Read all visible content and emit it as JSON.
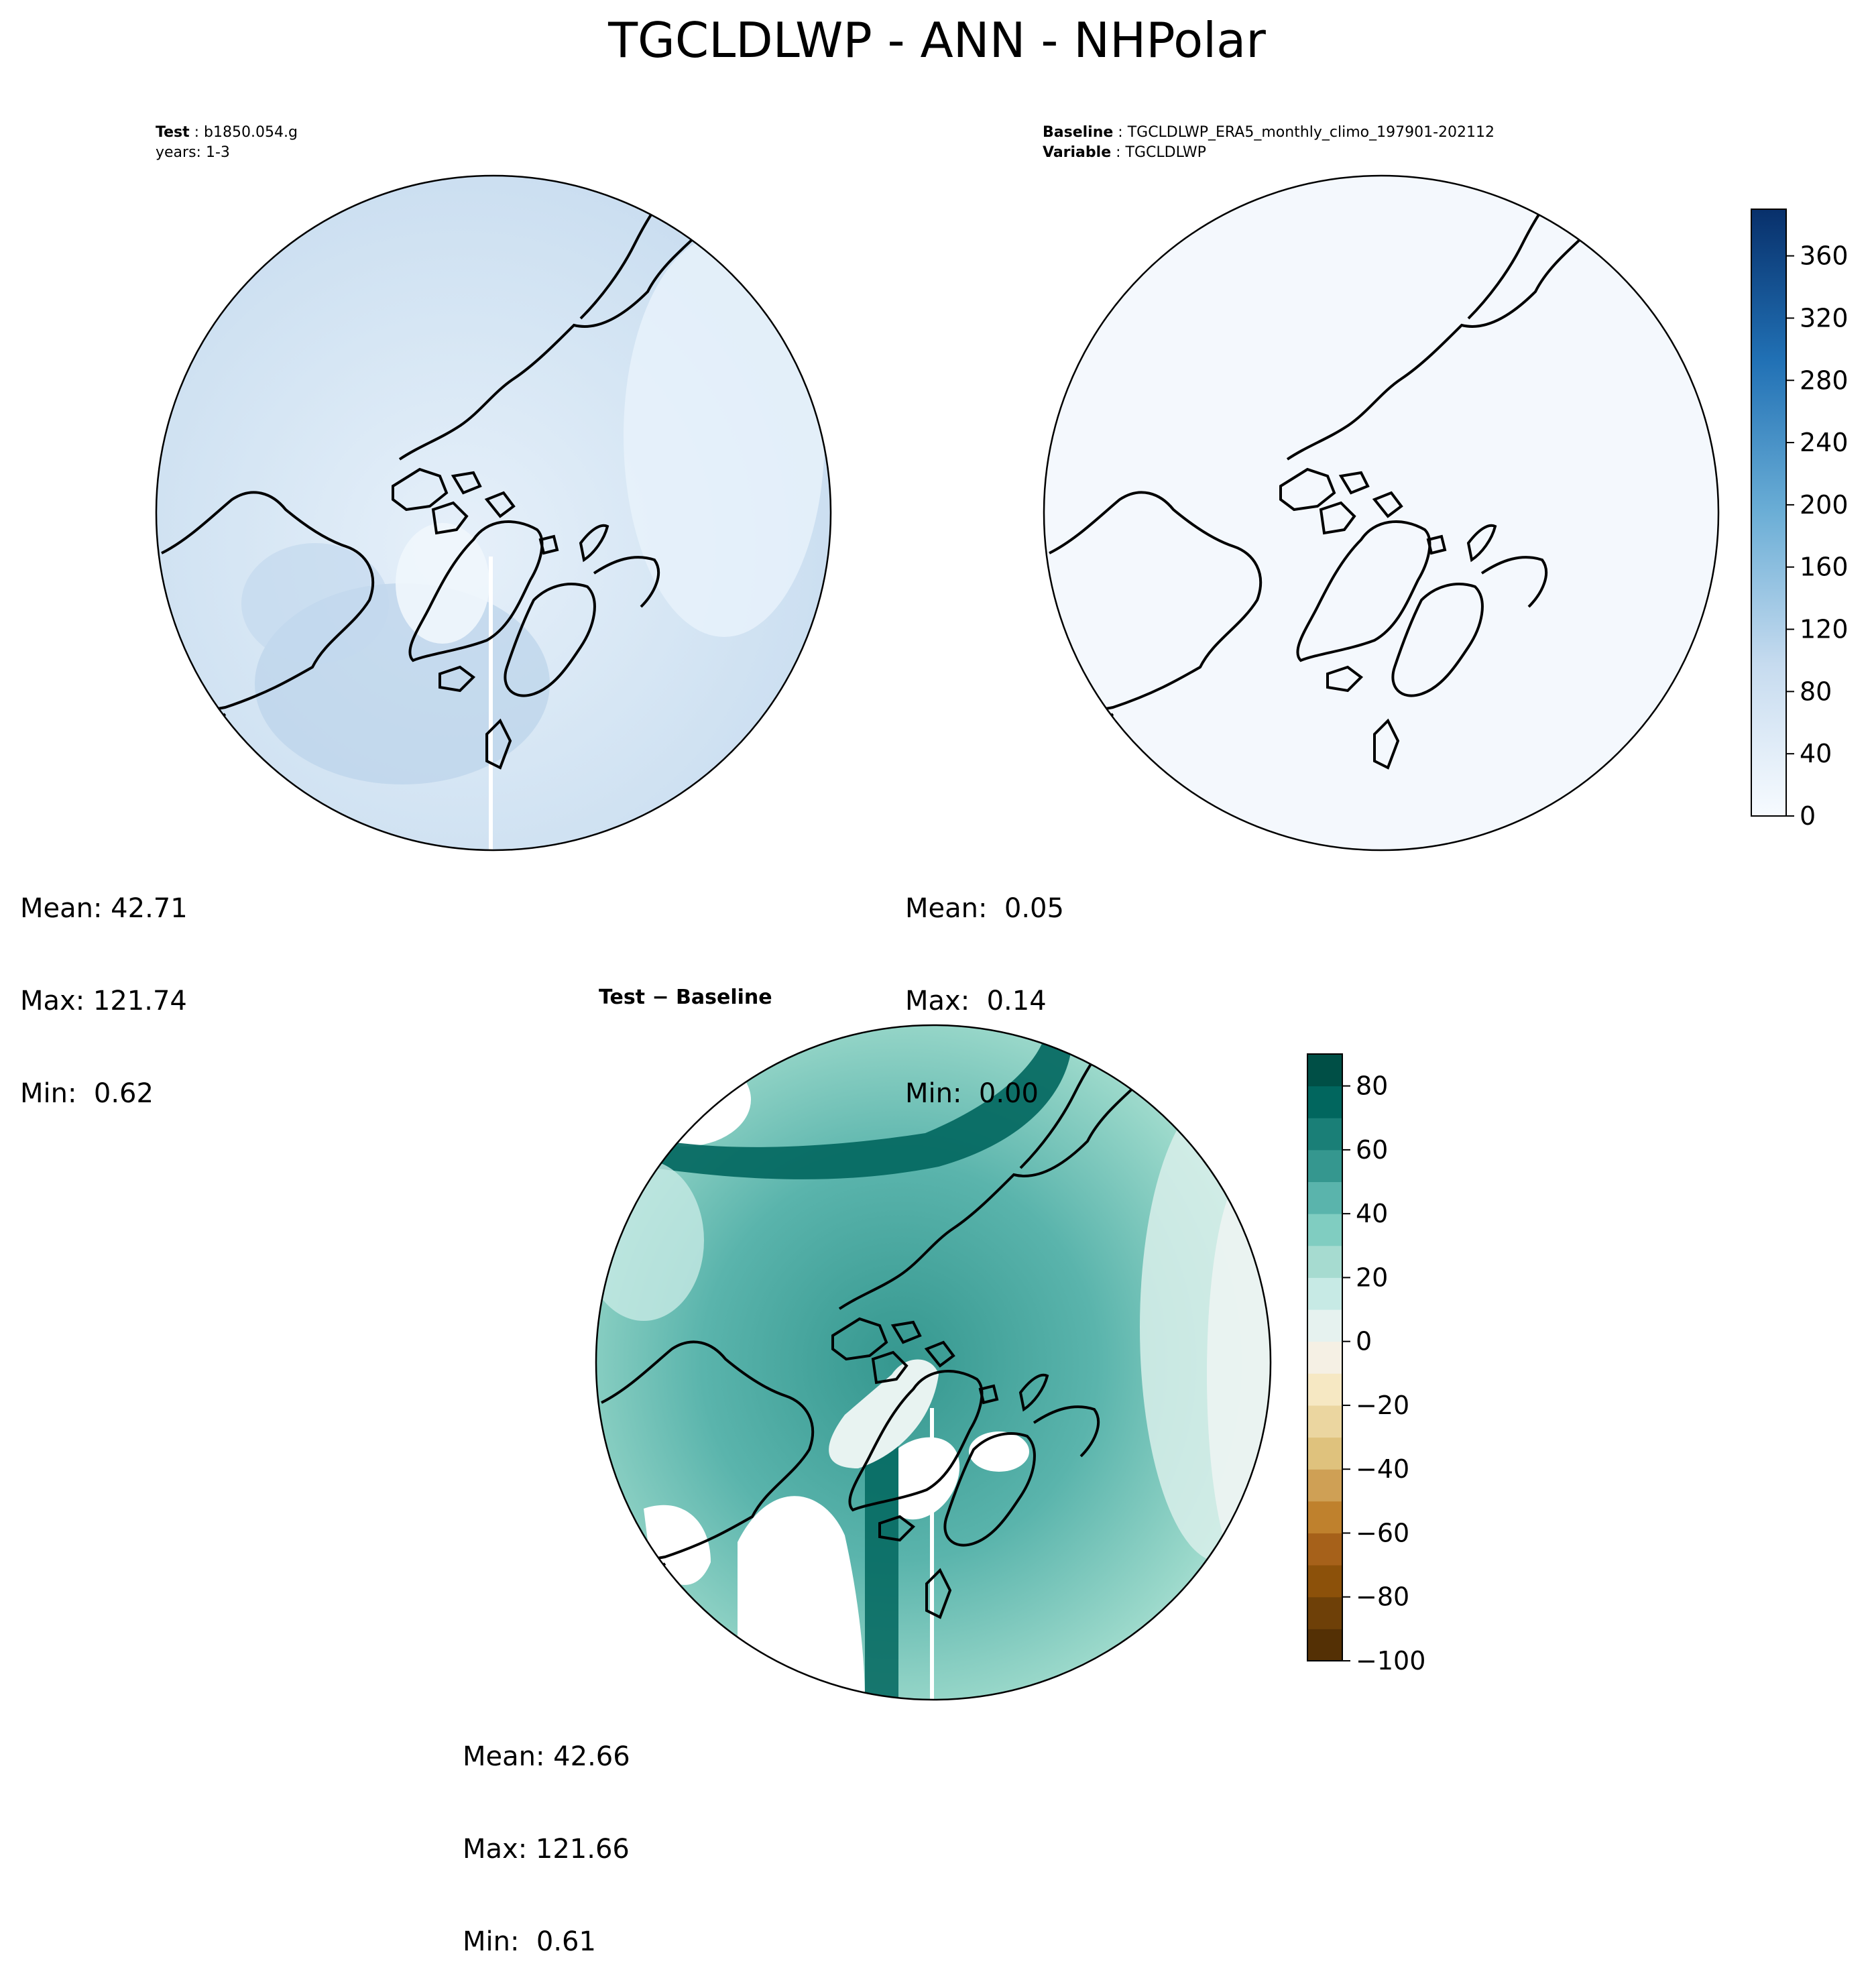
{
  "figure": {
    "title": "TGCLDLWP - ANN - NHPolar"
  },
  "colors": {
    "land_outline": "#000000",
    "test_field": "#d9e8f5",
    "baseline_field": "#f4f8fd",
    "diff_ocean": "#5fb3a6",
    "diff_land_dark": "#01665e",
    "diff_light": "#c7eae5",
    "missing": "#ffffff"
  },
  "panels": {
    "test": {
      "label": "Test",
      "case": "b1850.054.g",
      "years": "years: 1-3",
      "stats": {
        "mean": "Mean: 42.71",
        "max": "Max: 121.74",
        "min": "Min:  0.62"
      }
    },
    "baseline": {
      "label": "Baseline",
      "case": "TGCLDLWP_ERA5_monthly_climo_197901-202112",
      "variable_label": "Variable",
      "variable": "TGCLDLWP",
      "stats": {
        "mean": "Mean:  0.05",
        "max": "Max:  0.14",
        "min": "Min:  0.00"
      }
    },
    "diff": {
      "label": "Test − Baseline",
      "stats": {
        "mean": "Mean: 42.66",
        "max": "Max: 121.66",
        "min": "Min:  0.61"
      }
    }
  },
  "colorbars": {
    "main": {
      "colormap": "Blues",
      "ticks": [
        "0",
        "40",
        "80",
        "120",
        "160",
        "200",
        "240",
        "280",
        "320",
        "360"
      ],
      "min": 0,
      "max": 390
    },
    "diff": {
      "colormap": "BrBG",
      "ticks": [
        "−100",
        "−80",
        "−60",
        "−40",
        "−20",
        "0",
        "20",
        "40",
        "60",
        "80"
      ],
      "min": -100,
      "max": 90
    }
  }
}
